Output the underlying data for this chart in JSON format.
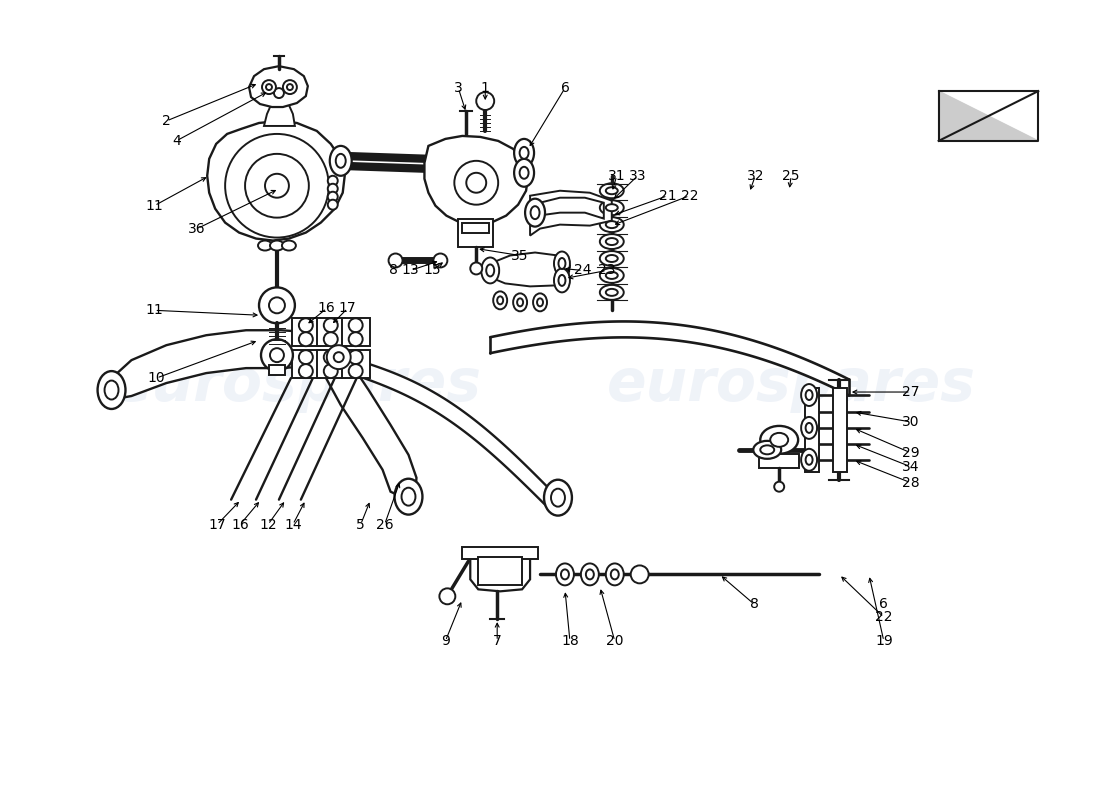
{
  "background_color": "#ffffff",
  "line_color": "#1a1a1a",
  "watermark_color": "#c8d4e8",
  "watermark_alpha": 0.28,
  "watermark_fontsize": 42,
  "label_fontsize": 10,
  "fig_width": 11.0,
  "fig_height": 8.0,
  "dpi": 100
}
